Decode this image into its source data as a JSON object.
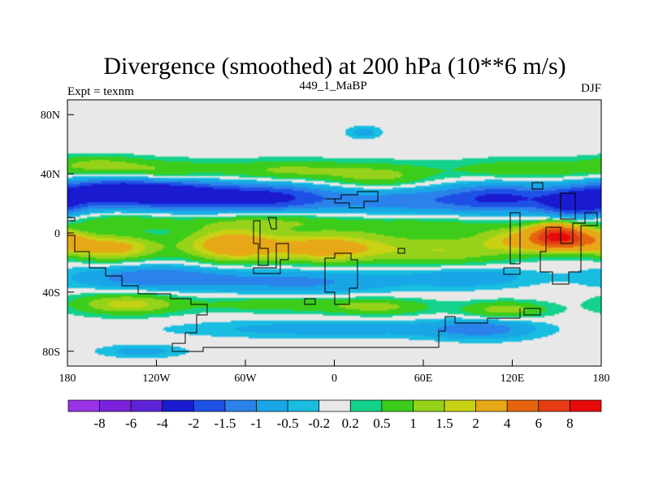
{
  "chart_data": {
    "type": "heatmap",
    "title": "Divergence (smoothed) at 200 hPa (10**6 m/s)",
    "left_label": "Expt = texnm",
    "center_label": "449_1_MaBP",
    "right_label": "DJF",
    "x_ticks": [
      "180",
      "120W",
      "60W",
      "0",
      "60E",
      "120E",
      "180"
    ],
    "x_tick_values": [
      -180,
      -120,
      -60,
      0,
      60,
      120,
      180
    ],
    "y_ticks": [
      "80N",
      "40N",
      "0",
      "40S",
      "80S"
    ],
    "y_tick_values": [
      80,
      40,
      0,
      -40,
      -80
    ],
    "xlim": [
      -180,
      180
    ],
    "ylim": [
      -90,
      90
    ],
    "colorbar": {
      "labels": [
        "-8",
        "-6",
        "-4",
        "-2",
        "-1.5",
        "-1",
        "-0.5",
        "-0.2",
        "0.2",
        "0.5",
        "1",
        "1.5",
        "2",
        "4",
        "6",
        "8"
      ],
      "levels": [
        -8,
        -6,
        -4,
        -2,
        -1.5,
        -1,
        -0.5,
        -0.2,
        0.2,
        0.5,
        1,
        1.5,
        2,
        4,
        6,
        8
      ],
      "colors": [
        "#9a32e6",
        "#7a22dc",
        "#5d24d6",
        "#1a1ad0",
        "#1e50e6",
        "#2a82ea",
        "#19a6e6",
        "#18bde0",
        "#e8e8e8",
        "#14d28c",
        "#3ccc1a",
        "#96d21a",
        "#c8d214",
        "#e6a816",
        "#e6640f",
        "#e63c14",
        "#e60a0a"
      ]
    },
    "field_components": [
      {
        "lon": -150,
        "lat": 28,
        "value": -2.6,
        "sx": 28,
        "sy": 7
      },
      {
        "lon": -105,
        "lat": 26,
        "value": -1.6,
        "sx": 26,
        "sy": 8
      },
      {
        "lon": -50,
        "lat": 24,
        "value": -2.2,
        "sx": 35,
        "sy": 7
      },
      {
        "lon": 55,
        "lat": 22,
        "value": -1.3,
        "sx": 45,
        "sy": 7
      },
      {
        "lon": 115,
        "lat": 24,
        "value": -1.6,
        "sx": 25,
        "sy": 7
      },
      {
        "lon": 165,
        "lat": 20,
        "value": -2.4,
        "sx": 18,
        "sy": 7
      },
      {
        "lon": -120,
        "lat": 42,
        "value": 1.2,
        "sx": 35,
        "sy": 5
      },
      {
        "lon": -30,
        "lat": 42,
        "value": 1.1,
        "sx": 30,
        "sy": 5
      },
      {
        "lon": 30,
        "lat": 38,
        "value": 1.2,
        "sx": 25,
        "sy": 6
      },
      {
        "lon": 130,
        "lat": 43,
        "value": 0.9,
        "sx": 40,
        "sy": 5
      },
      {
        "lon": -160,
        "lat": 47,
        "value": 0.8,
        "sx": 20,
        "sy": 4
      },
      {
        "lon": -140,
        "lat": 8,
        "value": 0.9,
        "sx": 35,
        "sy": 4
      },
      {
        "lon": -40,
        "lat": 8,
        "value": 1.0,
        "sx": 35,
        "sy": 4
      },
      {
        "lon": 60,
        "lat": 5,
        "value": 0.8,
        "sx": 40,
        "sy": 5
      },
      {
        "lon": -150,
        "lat": -10,
        "value": 2.4,
        "sx": 22,
        "sy": 6
      },
      {
        "lon": -70,
        "lat": -8,
        "value": 2.7,
        "sx": 22,
        "sy": 8
      },
      {
        "lon": -5,
        "lat": -10,
        "value": 2.6,
        "sx": 30,
        "sy": 7
      },
      {
        "lon": 75,
        "lat": -12,
        "value": 1.4,
        "sx": 30,
        "sy": 7
      },
      {
        "lon": 130,
        "lat": -5,
        "value": 2.2,
        "sx": 20,
        "sy": 6
      },
      {
        "lon": 150,
        "lat": -2,
        "value": 7.0,
        "sx": 11,
        "sy": 5
      },
      {
        "lon": 170,
        "lat": -5,
        "value": 3.2,
        "sx": 15,
        "sy": 5
      },
      {
        "lon": -120,
        "lat": -30,
        "value": -1.4,
        "sx": 40,
        "sy": 6
      },
      {
        "lon": -20,
        "lat": -33,
        "value": -1.1,
        "sx": 45,
        "sy": 6
      },
      {
        "lon": 90,
        "lat": -30,
        "value": -0.9,
        "sx": 30,
        "sy": 5
      },
      {
        "lon": -140,
        "lat": -48,
        "value": 1.7,
        "sx": 25,
        "sy": 5
      },
      {
        "lon": -40,
        "lat": -48,
        "value": 0.8,
        "sx": 40,
        "sy": 4
      },
      {
        "lon": 30,
        "lat": -50,
        "value": 1.1,
        "sx": 25,
        "sy": 4
      },
      {
        "lon": 115,
        "lat": -52,
        "value": 1.3,
        "sx": 20,
        "sy": 4
      },
      {
        "lon": 0,
        "lat": -65,
        "value": -0.8,
        "sx": 70,
        "sy": 4
      },
      {
        "lon": 100,
        "lat": -65,
        "value": -1.1,
        "sx": 25,
        "sy": 5
      },
      {
        "lon": -130,
        "lat": -80,
        "value": -0.7,
        "sx": 20,
        "sy": 3
      },
      {
        "lon": 20,
        "lat": 68,
        "value": -0.7,
        "sx": 8,
        "sy": 3
      }
    ]
  }
}
